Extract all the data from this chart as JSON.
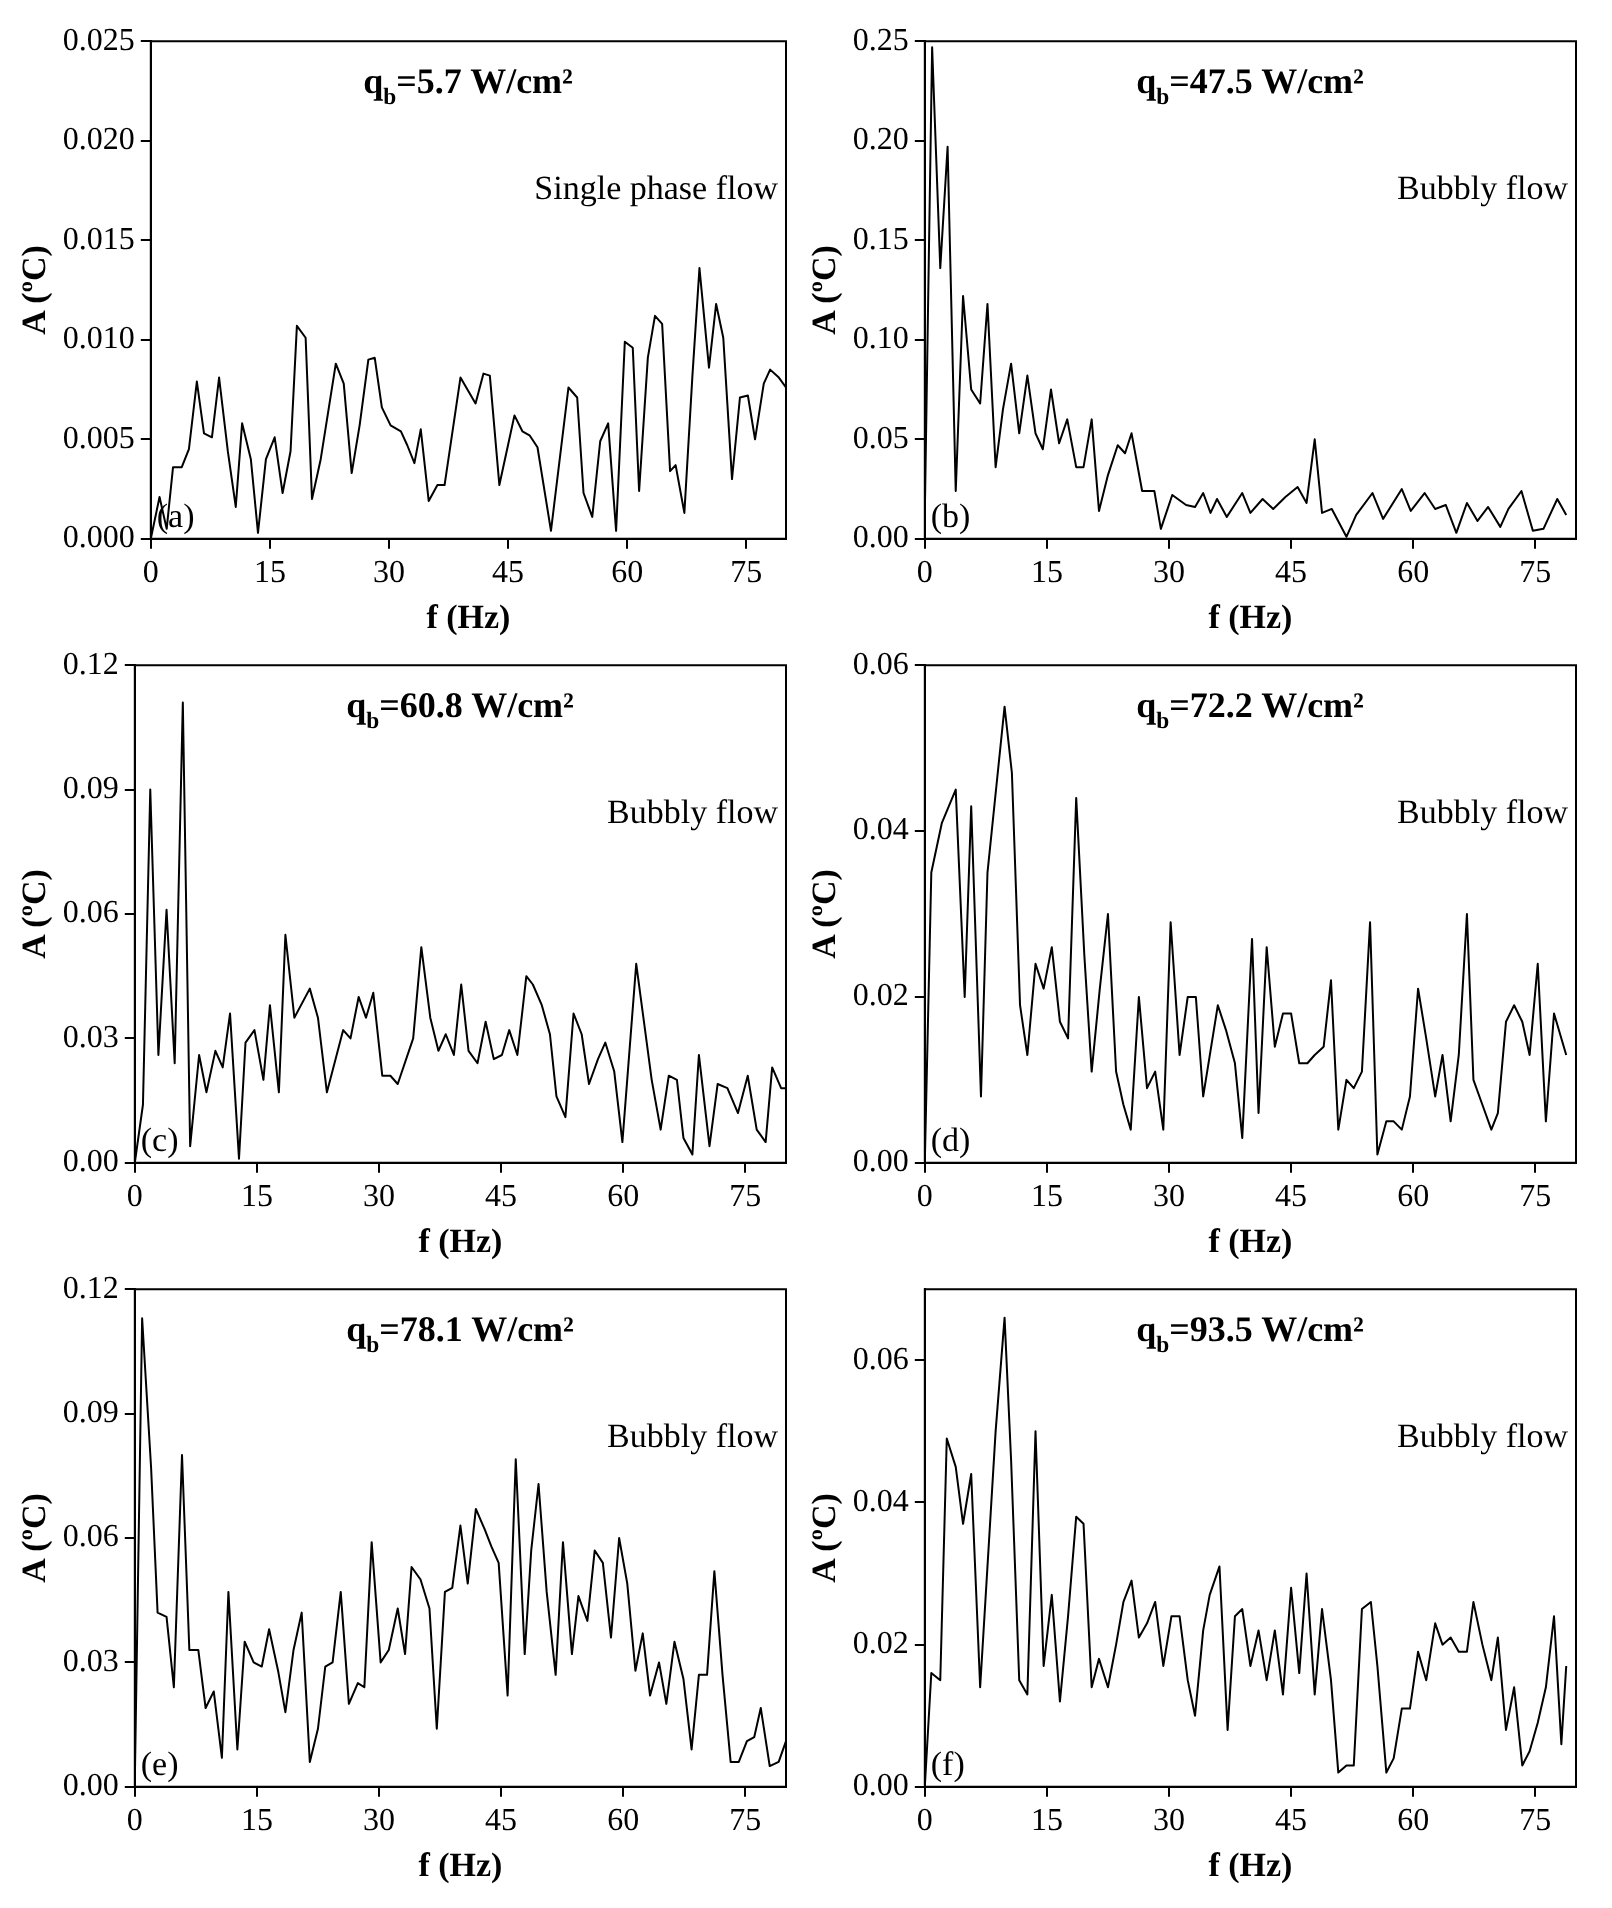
{
  "chart_data": [
    {
      "type": "line",
      "title": "q$_{b}$=5.7 W/cm²",
      "xlabel": "f (Hz)",
      "ylabel": "A (ºC)",
      "annotations": [
        "Single phase flow",
        "(a)"
      ],
      "xlim": [
        0,
        80
      ],
      "xticks": [
        0,
        15,
        30,
        45,
        60,
        75
      ],
      "ylim": [
        0,
        0.025
      ],
      "yticks": [
        {
          "value": 0,
          "label": "0.000"
        },
        {
          "value": 0.005,
          "label": "0.005"
        },
        {
          "value": 0.01,
          "label": "0.010"
        },
        {
          "value": 0.015,
          "label": "0.015"
        },
        {
          "value": 0.02,
          "label": "0.020"
        },
        {
          "value": 0.025,
          "label": "0.025"
        }
      ],
      "x": [
        0,
        1.1,
        2.0,
        2.8,
        3.9,
        4.8,
        5.8,
        6.7,
        7.7,
        8.6,
        9.7,
        10.7,
        11.5,
        12.6,
        13.5,
        14.5,
        15.6,
        16.6,
        17.6,
        18.4,
        19.5,
        20.3,
        21.4,
        23.3,
        24.3,
        25.3,
        26.3,
        27.4,
        28.2,
        29.1,
        30.2,
        31.5,
        32.3,
        33.2,
        34.0,
        35.0,
        36.1,
        37.0,
        39.0,
        40.9,
        41.9,
        42.7,
        43.9,
        45.8,
        46.8,
        47.7,
        48.7,
        50.4,
        52.6,
        53.7,
        54.5,
        55.6,
        56.6,
        57.6,
        58.6,
        59.7,
        60.7,
        61.5,
        62.6,
        63.5,
        64.4,
        65.4,
        66.1,
        67.2,
        68.2,
        69.1,
        70.3,
        71.2,
        72.1,
        73.2,
        74.2,
        75.2,
        76.1,
        77.2,
        78.0,
        79.1,
        80.0
      ],
      "series": [
        {
          "color": "#000000",
          "values": [
            0,
            0.0021,
            0.0005,
            0.0036,
            0.0036,
            0.0045,
            0.0079,
            0.0053,
            0.0051,
            0.0081,
            0.0044,
            0.0016,
            0.0058,
            0.004,
            0.0003,
            0.004,
            0.0051,
            0.0023,
            0.0044,
            0.0107,
            0.0101,
            0.002,
            0.004,
            0.0088,
            0.0078,
            0.0033,
            0.0057,
            0.009,
            0.0091,
            0.0066,
            0.0057,
            0.0054,
            0.0047,
            0.0038,
            0.0055,
            0.0019,
            0.0027,
            0.0027,
            0.0081,
            0.0068,
            0.0083,
            0.0082,
            0.0027,
            0.0062,
            0.0054,
            0.0052,
            0.0046,
            0.0004,
            0.0076,
            0.0071,
            0.0023,
            0.0011,
            0.0049,
            0.0058,
            0.0004,
            0.0099,
            0.0096,
            0.0024,
            0.0091,
            0.0112,
            0.0108,
            0.0034,
            0.0037,
            0.0013,
            0.0081,
            0.0136,
            0.0086,
            0.0118,
            0.0101,
            0.003,
            0.0071,
            0.0072,
            0.005,
            0.0078,
            0.0085,
            0.0081,
            0.0076
          ]
        }
      ]
    },
    {
      "type": "line",
      "title": "q$_{b}$=47.5 W/cm²",
      "xlabel": "f (Hz)",
      "ylabel": "A (ºC)",
      "annotations": [
        "Bubbly flow",
        "(b)"
      ],
      "xlim": [
        0,
        80
      ],
      "xticks": [
        0,
        15,
        30,
        45,
        60,
        75
      ],
      "ylim": [
        0,
        0.25
      ],
      "yticks": [
        {
          "value": 0,
          "label": "0.00"
        },
        0.05,
        {
          "value": 0.1,
          "label": "0.10"
        },
        0.15,
        {
          "value": 0.2,
          "label": "0.20"
        },
        0.25
      ],
      "x": [
        0,
        0.9,
        1.9,
        2.8,
        3.8,
        4.7,
        5.7,
        6.8,
        7.7,
        8.7,
        9.6,
        10.6,
        11.6,
        12.6,
        13.6,
        14.5,
        15.5,
        16.5,
        17.5,
        18.6,
        19.5,
        20.5,
        21.4,
        22.5,
        23.7,
        24.6,
        25.4,
        26.7,
        28.2,
        29.0,
        30.4,
        32.1,
        33.2,
        34.2,
        35.1,
        35.9,
        37.1,
        39.0,
        40.0,
        41.5,
        42.8,
        44.3,
        45.8,
        46.9,
        47.9,
        48.8,
        50.0,
        51.8,
        53.0,
        55.0,
        56.3,
        58.6,
        59.7,
        61.4,
        62.7,
        64.0,
        65.3,
        66.6,
        67.9,
        69.2,
        70.7,
        71.7,
        73.3,
        74.7,
        76.0,
        77.7,
        78.8
      ],
      "series": [
        {
          "color": "#000000",
          "values": [
            0.012,
            0.247,
            0.136,
            0.197,
            0.024,
            0.122,
            0.075,
            0.068,
            0.118,
            0.036,
            0.065,
            0.088,
            0.053,
            0.082,
            0.053,
            0.045,
            0.075,
            0.048,
            0.06,
            0.036,
            0.036,
            0.06,
            0.014,
            0.032,
            0.047,
            0.043,
            0.053,
            0.024,
            0.024,
            0.005,
            0.022,
            0.017,
            0.016,
            0.023,
            0.013,
            0.02,
            0.011,
            0.023,
            0.013,
            0.02,
            0.015,
            0.021,
            0.026,
            0.018,
            0.05,
            0.013,
            0.015,
            0.001,
            0.012,
            0.023,
            0.01,
            0.025,
            0.014,
            0.023,
            0.015,
            0.017,
            0.003,
            0.018,
            0.009,
            0.016,
            0.006,
            0.015,
            0.024,
            0.004,
            0.005,
            0.02,
            0.012
          ]
        }
      ]
    },
    {
      "type": "line",
      "title": "q$_{b}$=60.8 W/cm²",
      "xlabel": "f (Hz)",
      "ylabel": "A (ºC)",
      "annotations": [
        "Bubbly flow",
        "(c)"
      ],
      "xlim": [
        0,
        80
      ],
      "xticks": [
        0,
        15,
        30,
        45,
        60,
        75
      ],
      "ylim": [
        0,
        0.12
      ],
      "yticks": [
        {
          "value": 0,
          "label": "0.00"
        },
        0.03,
        0.06,
        0.09,
        0.12
      ],
      "x": [
        0,
        1.0,
        1.9,
        2.9,
        3.9,
        4.9,
        5.9,
        6.8,
        7.9,
        8.8,
        9.9,
        10.8,
        11.7,
        12.8,
        13.6,
        14.7,
        15.8,
        16.6,
        17.7,
        18.5,
        19.6,
        21.5,
        22.5,
        23.6,
        25.6,
        26.5,
        27.5,
        28.4,
        29.3,
        30.4,
        31.4,
        32.3,
        34.2,
        35.2,
        36.3,
        37.3,
        38.2,
        39.2,
        40.1,
        41.0,
        42.1,
        43.1,
        44.1,
        45.1,
        46.0,
        47.0,
        48.1,
        48.9,
        50.0,
        51.0,
        51.8,
        52.9,
        53.9,
        54.9,
        55.8,
        56.9,
        57.8,
        58.9,
        59.9,
        61.6,
        63.5,
        64.6,
        65.6,
        66.6,
        67.4,
        68.5,
        69.3,
        70.6,
        71.6,
        72.8,
        74.1,
        75.3,
        76.4,
        77.5,
        78.3,
        79.4,
        80.0
      ],
      "series": [
        {
          "color": "#000000",
          "values": [
            0,
            0.014,
            0.09,
            0.026,
            0.061,
            0.024,
            0.111,
            0.004,
            0.026,
            0.017,
            0.027,
            0.023,
            0.036,
            0.001,
            0.029,
            0.032,
            0.02,
            0.038,
            0.017,
            0.055,
            0.035,
            0.042,
            0.035,
            0.017,
            0.032,
            0.03,
            0.04,
            0.035,
            0.041,
            0.021,
            0.021,
            0.019,
            0.03,
            0.052,
            0.035,
            0.027,
            0.031,
            0.026,
            0.043,
            0.027,
            0.024,
            0.034,
            0.025,
            0.026,
            0.032,
            0.026,
            0.045,
            0.043,
            0.038,
            0.031,
            0.016,
            0.011,
            0.036,
            0.031,
            0.019,
            0.025,
            0.029,
            0.022,
            0.005,
            0.048,
            0.02,
            0.008,
            0.021,
            0.02,
            0.006,
            0.002,
            0.026,
            0.004,
            0.019,
            0.018,
            0.012,
            0.021,
            0.008,
            0.005,
            0.023,
            0.018,
            0.018
          ]
        }
      ]
    },
    {
      "type": "line",
      "title": "q$_{b}$=72.2 W/cm²",
      "xlabel": "f (Hz)",
      "ylabel": "A (ºC)",
      "annotations": [
        "Bubbly flow",
        "(d)"
      ],
      "xlim": [
        0,
        80
      ],
      "xticks": [
        0,
        15,
        30,
        45,
        60,
        75
      ],
      "ylim": [
        0,
        0.06
      ],
      "yticks": [
        {
          "value": 0,
          "label": "0.00"
        },
        0.02,
        0.04,
        0.06
      ],
      "x": [
        0,
        0.8,
        2.1,
        3.8,
        4.9,
        5.7,
        6.9,
        7.7,
        9.8,
        10.7,
        11.7,
        12.6,
        13.6,
        14.6,
        15.6,
        16.6,
        17.6,
        18.6,
        19.6,
        20.5,
        21.5,
        22.5,
        23.5,
        24.4,
        25.3,
        26.3,
        27.3,
        28.3,
        29.3,
        30.2,
        31.3,
        32.3,
        33.3,
        34.2,
        36.0,
        37.0,
        38.1,
        39.0,
        40.2,
        41.0,
        42.0,
        43.0,
        44.0,
        45.0,
        46.0,
        47.0,
        47.9,
        49.0,
        49.9,
        50.8,
        51.8,
        52.7,
        53.7,
        54.7,
        55.6,
        56.7,
        57.6,
        58.6,
        59.6,
        60.6,
        61.6,
        62.7,
        63.6,
        64.6,
        65.6,
        66.6,
        67.4,
        68.5,
        69.6,
        70.4,
        71.4,
        72.4,
        73.4,
        74.3,
        75.3,
        76.3,
        77.3,
        78.8
      ],
      "series": [
        {
          "color": "#000000",
          "values": [
            0,
            0.035,
            0.041,
            0.045,
            0.02,
            0.043,
            0.008,
            0.035,
            0.055,
            0.047,
            0.019,
            0.013,
            0.024,
            0.021,
            0.026,
            0.017,
            0.015,
            0.044,
            0.025,
            0.011,
            0.021,
            0.03,
            0.011,
            0.007,
            0.004,
            0.02,
            0.009,
            0.011,
            0.004,
            0.029,
            0.013,
            0.02,
            0.02,
            0.008,
            0.019,
            0.016,
            0.012,
            0.003,
            0.027,
            0.006,
            0.026,
            0.014,
            0.018,
            0.018,
            0.012,
            0.012,
            0.013,
            0.014,
            0.022,
            0.004,
            0.01,
            0.009,
            0.011,
            0.029,
            0.001,
            0.005,
            0.005,
            0.004,
            0.008,
            0.021,
            0.015,
            0.008,
            0.013,
            0.005,
            0.013,
            0.03,
            0.01,
            0.007,
            0.004,
            0.006,
            0.017,
            0.019,
            0.017,
            0.013,
            0.024,
            0.005,
            0.018,
            0.013
          ]
        }
      ]
    },
    {
      "type": "line",
      "title": "q$_{b}$=78.1 W/cm²",
      "xlabel": "f (Hz)",
      "ylabel": "A (ºC)",
      "annotations": [
        "Bubbly flow",
        "(e)"
      ],
      "xlim": [
        0,
        80
      ],
      "xticks": [
        0,
        15,
        30,
        45,
        60,
        75
      ],
      "ylim": [
        0,
        0.12
      ],
      "yticks": [
        {
          "value": 0,
          "label": "0.00"
        },
        0.03,
        0.06,
        0.09,
        0.12
      ],
      "x": [
        0,
        0.9,
        2.0,
        2.8,
        3.9,
        4.8,
        5.8,
        6.7,
        7.8,
        8.7,
        9.7,
        10.7,
        11.5,
        12.6,
        13.5,
        14.6,
        15.6,
        16.5,
        17.6,
        18.5,
        19.5,
        20.5,
        21.5,
        22.5,
        23.4,
        24.3,
        25.3,
        26.3,
        27.4,
        28.2,
        29.1,
        30.2,
        31.2,
        32.3,
        33.2,
        34.0,
        35.1,
        36.2,
        37.1,
        38.1,
        39.0,
        40.0,
        40.9,
        41.9,
        43.0,
        43.8,
        44.7,
        45.8,
        46.8,
        47.9,
        48.7,
        49.6,
        50.6,
        51.7,
        52.6,
        53.7,
        54.5,
        55.6,
        56.5,
        57.5,
        58.5,
        59.5,
        60.5,
        61.5,
        62.4,
        63.3,
        64.4,
        65.3,
        66.3,
        67.4,
        68.4,
        69.3,
        70.3,
        71.2,
        72.2,
        73.2,
        74.2,
        75.2,
        76.1,
        76.9,
        78.0,
        79.1,
        80.0
      ],
      "series": [
        {
          "color": "#000000",
          "values": [
            0.001,
            0.113,
            0.077,
            0.042,
            0.041,
            0.024,
            0.08,
            0.033,
            0.033,
            0.019,
            0.023,
            0.007,
            0.047,
            0.009,
            0.035,
            0.03,
            0.029,
            0.038,
            0.028,
            0.018,
            0.033,
            0.042,
            0.006,
            0.014,
            0.029,
            0.03,
            0.047,
            0.02,
            0.025,
            0.024,
            0.059,
            0.03,
            0.033,
            0.043,
            0.032,
            0.053,
            0.05,
            0.043,
            0.014,
            0.047,
            0.048,
            0.063,
            0.049,
            0.067,
            0.062,
            0.058,
            0.054,
            0.022,
            0.079,
            0.032,
            0.057,
            0.073,
            0.047,
            0.027,
            0.059,
            0.032,
            0.046,
            0.04,
            0.057,
            0.054,
            0.036,
            0.06,
            0.049,
            0.028,
            0.037,
            0.022,
            0.03,
            0.02,
            0.035,
            0.026,
            0.009,
            0.027,
            0.027,
            0.052,
            0.027,
            0.006,
            0.006,
            0.011,
            0.012,
            0.019,
            0.005,
            0.006,
            0.011
          ]
        }
      ]
    },
    {
      "type": "line",
      "title": "q$_{b}$=93.5 W/cm²",
      "xlabel": "f (Hz)",
      "ylabel": "A (ºC)",
      "annotations": [
        "Bubbly flow",
        "(f)"
      ],
      "xlim": [
        0,
        80
      ],
      "xticks": [
        0,
        15,
        30,
        45,
        60,
        75
      ],
      "ylim": [
        0,
        0.07
      ],
      "yticks": [
        {
          "value": 0,
          "label": "0.00"
        },
        0.02,
        0.04,
        0.06
      ],
      "x": [
        0,
        0.8,
        1.9,
        2.7,
        3.8,
        4.7,
        5.7,
        6.8,
        7.7,
        8.7,
        9.8,
        10.6,
        11.6,
        12.6,
        13.6,
        14.6,
        15.6,
        16.6,
        17.6,
        18.6,
        19.5,
        20.5,
        21.4,
        22.5,
        23.5,
        24.4,
        25.4,
        26.3,
        27.3,
        28.3,
        29.3,
        30.3,
        31.3,
        32.3,
        33.2,
        34.2,
        35.0,
        36.2,
        37.2,
        38.1,
        39.0,
        40.0,
        41.0,
        42.0,
        43.0,
        44.0,
        45.0,
        46.0,
        46.9,
        47.9,
        48.8,
        49.9,
        50.8,
        51.8,
        52.7,
        53.7,
        54.8,
        55.6,
        56.7,
        57.6,
        58.6,
        59.6,
        60.6,
        61.6,
        62.7,
        63.6,
        64.6,
        65.6,
        66.6,
        67.4,
        68.5,
        69.6,
        70.4,
        71.4,
        72.4,
        73.4,
        74.3,
        75.3,
        76.3,
        77.3,
        78.2,
        78.8
      ],
      "series": [
        {
          "color": "#000000",
          "values": [
            0,
            0.016,
            0.015,
            0.049,
            0.045,
            0.037,
            0.044,
            0.014,
            0.031,
            0.05,
            0.066,
            0.046,
            0.015,
            0.013,
            0.05,
            0.017,
            0.027,
            0.012,
            0.024,
            0.038,
            0.037,
            0.014,
            0.018,
            0.014,
            0.02,
            0.026,
            0.029,
            0.021,
            0.023,
            0.026,
            0.017,
            0.024,
            0.024,
            0.015,
            0.01,
            0.022,
            0.027,
            0.031,
            0.008,
            0.024,
            0.025,
            0.017,
            0.022,
            0.015,
            0.022,
            0.013,
            0.028,
            0.016,
            0.03,
            0.013,
            0.025,
            0.015,
            0.002,
            0.003,
            0.003,
            0.025,
            0.026,
            0.017,
            0.002,
            0.004,
            0.011,
            0.011,
            0.019,
            0.015,
            0.023,
            0.02,
            0.021,
            0.019,
            0.019,
            0.026,
            0.02,
            0.015,
            0.021,
            0.008,
            0.014,
            0.003,
            0.005,
            0.009,
            0.014,
            0.024,
            0.006,
            0.017
          ]
        }
      ]
    }
  ]
}
